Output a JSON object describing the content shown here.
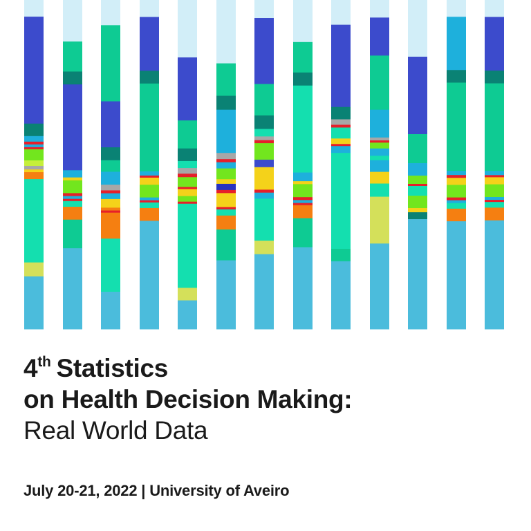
{
  "title": {
    "ordinal_number": "4",
    "ordinal_suffix": "th",
    "line1_rest": "Statistics",
    "line2": "on Health Decision Making:",
    "subtitle": "Real World Data"
  },
  "event": {
    "dates": "July 20-21, 2022",
    "separator": "|",
    "venue": "University of Aveiro"
  },
  "artwork": {
    "palette": {
      "pale": "#d2eef8",
      "royal": "#3c4bcc",
      "teal": "#0a8274",
      "mint": "#14dfaf",
      "green": "#0ecb93",
      "cyan": "#1eb0dc",
      "sky": "#4bbcdc",
      "lime": "#72e61e",
      "yellow": "#f4d21a",
      "olive": "#d4e05a",
      "orange": "#f57f11",
      "red": "#e61f2a",
      "gray": "#a7a7a7",
      "navy": "#2833c0",
      "light_lime": "#c6ef3a"
    },
    "columns": [
      [
        [
          "pale",
          24
        ],
        [
          "royal",
          28
        ],
        [
          "royal",
          126
        ],
        [
          "teal",
          18
        ],
        [
          "cyan",
          8
        ],
        [
          "red",
          4
        ],
        [
          "cyan",
          4
        ],
        [
          "red",
          3
        ],
        [
          "lime",
          16
        ],
        [
          "light_lime",
          8
        ],
        [
          "gray",
          5
        ],
        [
          "yellow",
          4
        ],
        [
          "orange",
          10
        ],
        [
          "mint",
          120
        ],
        [
          "olive",
          20
        ],
        [
          "sky",
          76
        ]
      ],
      [
        [
          "pale",
          58
        ],
        [
          "green",
          42
        ],
        [
          "teal",
          18
        ],
        [
          "royal",
          120
        ],
        [
          "cyan",
          10
        ],
        [
          "yellow",
          4
        ],
        [
          "lime",
          18
        ],
        [
          "red",
          4
        ],
        [
          "cyan",
          4
        ],
        [
          "red",
          3
        ],
        [
          "mint",
          8
        ],
        [
          "orange",
          18
        ],
        [
          "green",
          40
        ],
        [
          "sky",
          113
        ]
      ],
      [
        [
          "pale",
          35
        ],
        [
          "green",
          106
        ],
        [
          "royal",
          64
        ],
        [
          "teal",
          18
        ],
        [
          "green",
          16
        ],
        [
          "cyan",
          18
        ],
        [
          "gray",
          8
        ],
        [
          "red",
          4
        ],
        [
          "cyan",
          8
        ],
        [
          "yellow",
          12
        ],
        [
          "orange",
          4
        ],
        [
          "red",
          3
        ],
        [
          "orange",
          36
        ],
        [
          "mint",
          74
        ],
        [
          "sky",
          52
        ]
      ],
      [
        [
          "pale",
          24
        ],
        [
          "royal",
          28
        ],
        [
          "royal",
          48
        ],
        [
          "teal",
          18
        ],
        [
          "green",
          124
        ],
        [
          "cyan",
          6
        ],
        [
          "red",
          3
        ],
        [
          "yellow",
          10
        ],
        [
          "lime",
          18
        ],
        [
          "cyan",
          4
        ],
        [
          "red",
          3
        ],
        [
          "mint",
          8
        ],
        [
          "orange",
          18
        ],
        [
          "sky",
          153
        ]
      ],
      [
        [
          "pale",
          82
        ],
        [
          "royal",
          90
        ],
        [
          "green",
          40
        ],
        [
          "teal",
          18
        ],
        [
          "mint",
          10
        ],
        [
          "gray",
          8
        ],
        [
          "red",
          5
        ],
        [
          "lime",
          14
        ],
        [
          "red",
          3
        ],
        [
          "yellow",
          10
        ],
        [
          "lime",
          8
        ],
        [
          "red",
          3
        ],
        [
          "mint",
          120
        ],
        [
          "olive",
          18
        ],
        [
          "sky",
          41
        ]
      ],
      [
        [
          "pale",
          82
        ],
        [
          "green",
          42
        ],
        [
          "teal",
          18
        ],
        [
          "cyan",
          56
        ],
        [
          "gray",
          8
        ],
        [
          "red",
          4
        ],
        [
          "cyan",
          8
        ],
        [
          "lime",
          14
        ],
        [
          "yellow",
          6
        ],
        [
          "navy",
          8
        ],
        [
          "red",
          4
        ],
        [
          "yellow",
          18
        ],
        [
          "red",
          3
        ],
        [
          "mint",
          8
        ],
        [
          "orange",
          18
        ],
        [
          "green",
          40
        ],
        [
          "sky",
          89
        ]
      ],
      [
        [
          "pale",
          24
        ],
        [
          "royal",
          88
        ],
        [
          "green",
          42
        ],
        [
          "teal",
          18
        ],
        [
          "mint",
          10
        ],
        [
          "gray",
          5
        ],
        [
          "red",
          4
        ],
        [
          "lime",
          22
        ],
        [
          "royal",
          10
        ],
        [
          "yellow",
          30
        ],
        [
          "red",
          4
        ],
        [
          "cyan",
          8
        ],
        [
          "mint",
          56
        ],
        [
          "olive",
          18
        ],
        [
          "sky",
          100
        ]
      ],
      [
        [
          "pale",
          58
        ],
        [
          "green",
          42
        ],
        [
          "teal",
          18
        ],
        [
          "mint",
          120
        ],
        [
          "cyan",
          12
        ],
        [
          "yellow",
          4
        ],
        [
          "lime",
          18
        ],
        [
          "red",
          4
        ],
        [
          "cyan",
          4
        ],
        [
          "red",
          3
        ],
        [
          "orange",
          18
        ],
        [
          "green",
          40
        ],
        [
          "sky",
          113
        ]
      ],
      [
        [
          "pale",
          36
        ],
        [
          "royal",
          120
        ],
        [
          "teal",
          18
        ],
        [
          "gray",
          8
        ],
        [
          "red",
          4
        ],
        [
          "mint",
          16
        ],
        [
          "yellow",
          8
        ],
        [
          "red",
          3
        ],
        [
          "cyan",
          10
        ],
        [
          "mint",
          140
        ],
        [
          "green",
          18
        ],
        [
          "sky",
          99
        ]
      ],
      [
        [
          "pale",
          24
        ],
        [
          "royal",
          28
        ],
        [
          "royal",
          24
        ],
        [
          "green",
          74
        ],
        [
          "cyan",
          38
        ],
        [
          "gray",
          4
        ],
        [
          "red",
          3
        ],
        [
          "lime",
          8
        ],
        [
          "cyan",
          10
        ],
        [
          "mint",
          6
        ],
        [
          "cyan",
          16
        ],
        [
          "yellow",
          16
        ],
        [
          "mint",
          18
        ],
        [
          "olive",
          64
        ],
        [
          "sky",
          117
        ]
      ],
      [
        [
          "pale",
          82
        ],
        [
          "royal",
          112
        ],
        [
          "green",
          42
        ],
        [
          "cyan",
          18
        ],
        [
          "lime",
          12
        ],
        [
          "red",
          3
        ],
        [
          "mint",
          14
        ],
        [
          "lime",
          18
        ],
        [
          "yellow",
          6
        ],
        [
          "teal",
          10
        ],
        [
          "sky",
          159
        ]
      ],
      [
        [
          "pale",
          24
        ],
        [
          "cyan",
          76
        ],
        [
          "teal",
          18
        ],
        [
          "green",
          126
        ],
        [
          "cyan",
          6
        ],
        [
          "red",
          4
        ],
        [
          "yellow",
          10
        ],
        [
          "lime",
          18
        ],
        [
          "red",
          4
        ],
        [
          "cyan",
          4
        ],
        [
          "mint",
          8
        ],
        [
          "orange",
          18
        ],
        [
          "sky",
          154
        ]
      ],
      [
        [
          "pale",
          24
        ],
        [
          "royal",
          28
        ],
        [
          "royal",
          48
        ],
        [
          "teal",
          18
        ],
        [
          "green",
          124
        ],
        [
          "cyan",
          6
        ],
        [
          "red",
          3
        ],
        [
          "yellow",
          10
        ],
        [
          "lime",
          18
        ],
        [
          "cyan",
          4
        ],
        [
          "red",
          3
        ],
        [
          "mint",
          8
        ],
        [
          "orange",
          18
        ],
        [
          "sky",
          154
        ]
      ]
    ]
  }
}
